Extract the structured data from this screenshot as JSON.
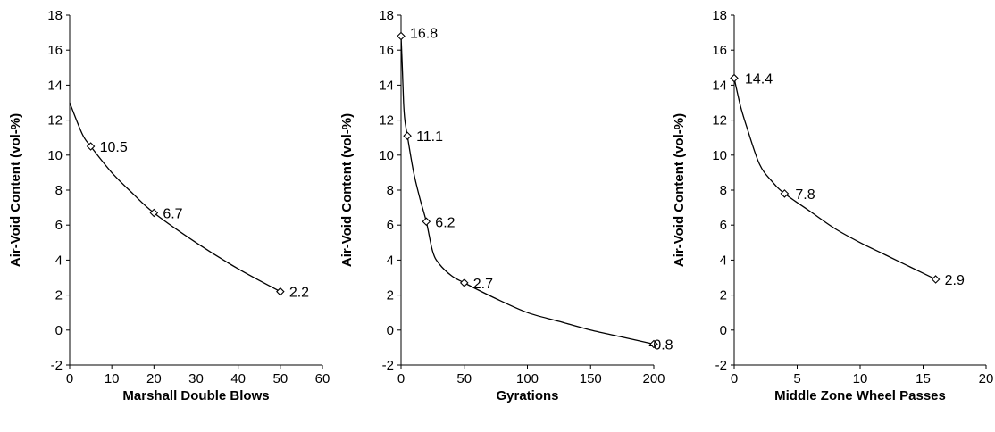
{
  "chart_data": [
    {
      "type": "line",
      "xlabel": "Marshall Double Blows",
      "ylabel": "Air-Void Content (vol-%)",
      "xlim": [
        0,
        60
      ],
      "ylim": [
        -2,
        18
      ],
      "xticks": [
        0,
        10,
        20,
        30,
        40,
        50,
        60
      ],
      "yticks": [
        -2,
        0,
        2,
        4,
        6,
        8,
        10,
        12,
        14,
        16,
        18
      ],
      "grid": false,
      "curve": [
        [
          0,
          13.0
        ],
        [
          3,
          11.2
        ],
        [
          5,
          10.5
        ],
        [
          10,
          9.0
        ],
        [
          15,
          7.8
        ],
        [
          20,
          6.7
        ],
        [
          30,
          5.0
        ],
        [
          40,
          3.5
        ],
        [
          50,
          2.2
        ]
      ],
      "points": [
        {
          "x": 5,
          "y": 10.5,
          "label": "10.5"
        },
        {
          "x": 20,
          "y": 6.7,
          "label": "6.7"
        },
        {
          "x": 50,
          "y": 2.2,
          "label": "2.2"
        }
      ]
    },
    {
      "type": "line",
      "xlabel": "Gyrations",
      "ylabel": "Air-Void Content (vol-%)",
      "xlim": [
        0,
        200
      ],
      "ylim": [
        -2,
        18
      ],
      "xticks": [
        0,
        50,
        100,
        150,
        200
      ],
      "yticks": [
        -2,
        0,
        2,
        4,
        6,
        8,
        10,
        12,
        14,
        16,
        18
      ],
      "grid": false,
      "curve": [
        [
          0,
          16.8
        ],
        [
          1,
          15.0
        ],
        [
          2,
          13.0
        ],
        [
          3,
          12.0
        ],
        [
          5,
          11.1
        ],
        [
          10,
          9.0
        ],
        [
          15,
          7.5
        ],
        [
          20,
          6.2
        ],
        [
          25,
          4.5
        ],
        [
          30,
          3.8
        ],
        [
          40,
          3.1
        ],
        [
          50,
          2.7
        ],
        [
          75,
          1.8
        ],
        [
          100,
          1.0
        ],
        [
          125,
          0.5
        ],
        [
          150,
          0.0
        ],
        [
          175,
          -0.4
        ],
        [
          200,
          -0.8
        ]
      ],
      "points": [
        {
          "x": 0,
          "y": 16.8,
          "label": "16.8"
        },
        {
          "x": 5,
          "y": 11.1,
          "label": "11.1"
        },
        {
          "x": 20,
          "y": 6.2,
          "label": "6.2"
        },
        {
          "x": 50,
          "y": 2.7,
          "label": "2.7"
        },
        {
          "x": 200,
          "y": -0.8,
          "label": "-0.8"
        }
      ]
    },
    {
      "type": "line",
      "xlabel": "Middle Zone Wheel Passes",
      "ylabel": "Air-Void Content (vol-%)",
      "xlim": [
        0,
        20
      ],
      "ylim": [
        -2,
        18
      ],
      "xticks": [
        0,
        5,
        10,
        15,
        20
      ],
      "yticks": [
        -2,
        0,
        2,
        4,
        6,
        8,
        10,
        12,
        14,
        16,
        18
      ],
      "grid": false,
      "curve": [
        [
          0,
          14.4
        ],
        [
          0.5,
          12.8
        ],
        [
          1,
          11.6
        ],
        [
          2,
          9.5
        ],
        [
          3,
          8.5
        ],
        [
          4,
          7.8
        ],
        [
          6,
          6.8
        ],
        [
          8,
          5.8
        ],
        [
          10,
          5.0
        ],
        [
          12,
          4.3
        ],
        [
          14,
          3.6
        ],
        [
          16,
          2.9
        ]
      ],
      "points": [
        {
          "x": 0,
          "y": 14.4,
          "label": "14.4"
        },
        {
          "x": 4,
          "y": 7.8,
          "label": "7.8"
        },
        {
          "x": 16,
          "y": 2.9,
          "label": "2.9"
        }
      ]
    }
  ]
}
